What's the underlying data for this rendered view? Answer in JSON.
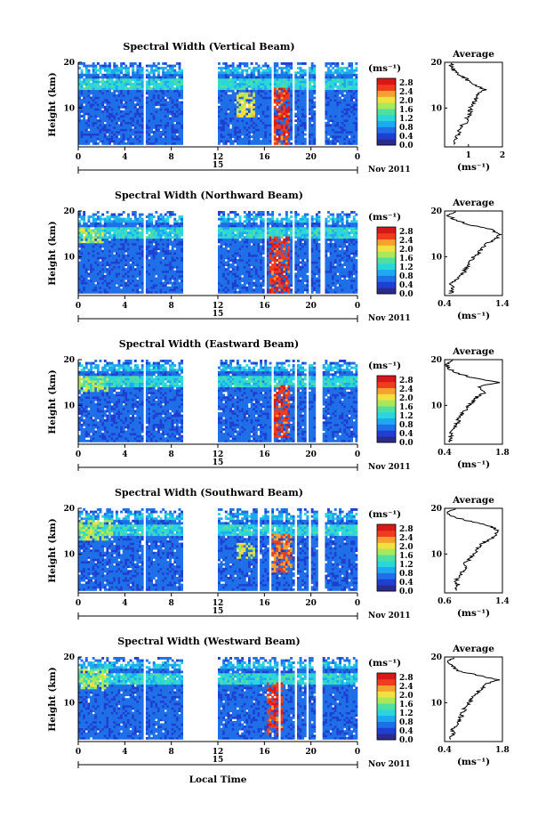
{
  "figure": {
    "xaxis_label": "Local Time",
    "date_label": "Nov 2011",
    "date_center_label": "15",
    "unit_label": "(ms⁻¹)",
    "avg_title": "Average",
    "colors": {
      "colormap": [
        "#2b2b8c",
        "#1f3fd0",
        "#1e6fe8",
        "#1ea8f0",
        "#2ad6dc",
        "#4fe0a0",
        "#a8e85a",
        "#f0e040",
        "#f5a030",
        "#ee3c1e",
        "#d81818"
      ]
    }
  },
  "chart_data": [
    {
      "type": "heatmap",
      "title": "Spectral Width (Vertical Beam)",
      "ylabel": "Height (km)",
      "xlabel": "Local Time",
      "x_ticks": [
        "0",
        "4",
        "8",
        "12",
        "16",
        "20",
        "0"
      ],
      "y_ticks": [
        "20",
        "10"
      ],
      "xlim": [
        0,
        24
      ],
      "ylim": [
        1.5,
        20
      ],
      "colorbar": {
        "ticks": [
          "2.8",
          "2.4",
          "2.0",
          "1.6",
          "1.2",
          "0.8",
          "0.4",
          "0.0"
        ],
        "range": [
          0,
          3.0
        ]
      },
      "data_gaps_hours": [
        [
          5.6,
          5.9
        ],
        [
          9.0,
          12.0
        ],
        [
          16.6,
          16.8
        ],
        [
          18.3,
          18.5
        ],
        [
          19.5,
          19.7
        ],
        [
          20.3,
          21.2
        ]
      ],
      "enhanced_regions": [
        {
          "t": [
            13.5,
            15.0
          ],
          "h": [
            8,
            13
          ],
          "value": 2.2
        },
        {
          "t": [
            16.5,
            18.0
          ],
          "h": [
            2,
            14
          ],
          "value": 2.9
        }
      ],
      "profile": {
        "title": "Average",
        "xlabel": "(ms⁻¹)",
        "x_ticks": [
          "1",
          "2"
        ],
        "xlim": [
          0.3,
          2.0
        ],
        "y_ticks": [
          "20",
          "10"
        ],
        "height": [
          2,
          3,
          4,
          5,
          6,
          7,
          8,
          9,
          10,
          11,
          12,
          13,
          14,
          15,
          16,
          17,
          18,
          19,
          20
        ],
        "value": [
          0.6,
          0.62,
          0.7,
          0.72,
          0.8,
          0.95,
          0.98,
          1.05,
          1.05,
          1.15,
          1.2,
          1.3,
          1.5,
          1.2,
          1.0,
          0.8,
          0.6,
          0.5,
          0.5
        ]
      }
    },
    {
      "type": "heatmap",
      "title": "Spectral Width (Northward Beam)",
      "ylabel": "Height (km)",
      "xlabel": "Local Time",
      "x_ticks": [
        "0",
        "4",
        "8",
        "12",
        "16",
        "20",
        "0"
      ],
      "y_ticks": [
        "20",
        "10"
      ],
      "xlim": [
        0,
        24
      ],
      "ylim": [
        1.5,
        20
      ],
      "colorbar": {
        "ticks": [
          "2.8",
          "2.4",
          "2.0",
          "1.6",
          "1.2",
          "0.8",
          "0.4",
          "0.0"
        ],
        "range": [
          0,
          3.0
        ]
      },
      "data_gaps_hours": [
        [
          5.6,
          5.9
        ],
        [
          9.0,
          12.0
        ],
        [
          16.0,
          16.2
        ],
        [
          18.3,
          18.5
        ],
        [
          19.8,
          20.0
        ],
        [
          20.8,
          21.1
        ]
      ],
      "enhanced_regions": [
        {
          "t": [
            0.0,
            2.0
          ],
          "h": [
            13,
            16
          ],
          "value": 2.0
        },
        {
          "t": [
            16.2,
            18.0
          ],
          "h": [
            2,
            14
          ],
          "value": 2.9
        }
      ],
      "profile": {
        "title": "Average",
        "xlabel": "(ms⁻¹)",
        "x_ticks": [
          "0.4",
          "1.4"
        ],
        "xlim": [
          0.4,
          1.4
        ],
        "y_ticks": [
          "20",
          "10"
        ],
        "height": [
          2,
          3,
          4,
          5,
          6,
          7,
          8,
          9,
          10,
          11,
          12,
          13,
          14,
          15,
          16,
          17,
          18,
          19,
          20
        ],
        "value": [
          0.5,
          0.55,
          0.5,
          0.6,
          0.7,
          0.75,
          0.8,
          0.85,
          0.9,
          1.0,
          1.05,
          1.15,
          1.3,
          1.35,
          1.2,
          0.8,
          0.6,
          0.45,
          0.6
        ]
      }
    },
    {
      "type": "heatmap",
      "title": "Spectral Width (Eastward Beam)",
      "ylabel": "Height (km)",
      "xlabel": "Local Time",
      "x_ticks": [
        "0",
        "4",
        "8",
        "12",
        "16",
        "20",
        "0"
      ],
      "y_ticks": [
        "20",
        "10"
      ],
      "xlim": [
        0,
        24
      ],
      "ylim": [
        1.5,
        20
      ],
      "colorbar": {
        "ticks": [
          "2.8",
          "2.4",
          "2.0",
          "1.6",
          "1.2",
          "0.8",
          "0.4",
          "0.0"
        ],
        "range": [
          0,
          3.0
        ]
      },
      "data_gaps_hours": [
        [
          5.6,
          5.9
        ],
        [
          9.0,
          12.0
        ],
        [
          16.6,
          16.8
        ],
        [
          18.5,
          18.7
        ],
        [
          19.6,
          19.8
        ],
        [
          20.3,
          21.0
        ]
      ],
      "enhanced_regions": [
        {
          "t": [
            0.0,
            2.5
          ],
          "h": [
            13,
            16
          ],
          "value": 2.0
        },
        {
          "t": [
            16.5,
            18.0
          ],
          "h": [
            3,
            14
          ],
          "value": 2.9
        }
      ],
      "profile": {
        "title": "Average",
        "xlabel": "(ms⁻¹)",
        "x_ticks": [
          "0.4",
          "1.8"
        ],
        "xlim": [
          0.4,
          1.8
        ],
        "y_ticks": [
          "20",
          "10"
        ],
        "height": [
          2,
          3,
          4,
          5,
          6,
          7,
          8,
          9,
          10,
          11,
          12,
          13,
          14,
          15,
          16,
          17,
          18,
          19,
          20
        ],
        "value": [
          0.5,
          0.55,
          0.55,
          0.6,
          0.7,
          0.75,
          0.8,
          0.9,
          1.0,
          1.1,
          1.2,
          1.4,
          1.2,
          1.7,
          1.1,
          0.7,
          0.5,
          0.45,
          0.6
        ]
      }
    },
    {
      "type": "heatmap",
      "title": "Spectral Width (Southward Beam)",
      "ylabel": "Height (km)",
      "xlabel": "Local Time",
      "x_ticks": [
        "0",
        "4",
        "8",
        "12",
        "16",
        "20",
        "0"
      ],
      "y_ticks": [
        "20",
        "10"
      ],
      "xlim": [
        0,
        24
      ],
      "ylim": [
        1.5,
        20
      ],
      "colorbar": {
        "ticks": [
          "2.8",
          "2.4",
          "2.0",
          "1.6",
          "1.2",
          "0.8",
          "0.4",
          "0.0"
        ],
        "range": [
          0,
          3.0
        ]
      },
      "data_gaps_hours": [
        [
          5.6,
          5.9
        ],
        [
          9.0,
          12.0
        ],
        [
          15.3,
          15.5
        ],
        [
          16.4,
          16.6
        ],
        [
          18.6,
          18.8
        ],
        [
          19.8,
          20.0
        ],
        [
          20.6,
          21.2
        ]
      ],
      "enhanced_regions": [
        {
          "t": [
            0.0,
            3.0
          ],
          "h": [
            13,
            17
          ],
          "value": 2.0
        },
        {
          "t": [
            13.5,
            15.0
          ],
          "h": [
            9,
            12
          ],
          "value": 2.2
        },
        {
          "t": [
            16.5,
            18.2
          ],
          "h": [
            6,
            14
          ],
          "value": 2.7
        }
      ],
      "profile": {
        "title": "Average",
        "xlabel": "(ms⁻¹)",
        "x_ticks": [
          "0.6",
          "1.4"
        ],
        "xlim": [
          0.6,
          1.4
        ],
        "y_ticks": [
          "20",
          "10"
        ],
        "height": [
          2,
          3,
          4,
          5,
          6,
          7,
          8,
          9,
          10,
          11,
          12,
          13,
          14,
          15,
          16,
          17,
          18,
          19,
          20
        ],
        "value": [
          0.75,
          0.8,
          0.75,
          0.8,
          0.85,
          0.9,
          0.88,
          0.95,
          1.0,
          1.05,
          1.1,
          1.2,
          1.3,
          1.35,
          1.25,
          1.0,
          0.75,
          0.65,
          0.75
        ]
      }
    },
    {
      "type": "heatmap",
      "title": "Spectral Width (Westward Beam)",
      "ylabel": "Height (km)",
      "xlabel": "Local Time",
      "x_ticks": [
        "0",
        "4",
        "8",
        "12",
        "16",
        "20",
        "0"
      ],
      "y_ticks": [
        "20",
        "10"
      ],
      "xlim": [
        0,
        24
      ],
      "ylim": [
        1.5,
        20
      ],
      "colorbar": {
        "ticks": [
          "2.8",
          "2.4",
          "2.0",
          "1.6",
          "1.2",
          "0.8",
          "0.4",
          "0.0"
        ],
        "range": [
          0,
          3.0
        ]
      },
      "data_gaps_hours": [
        [
          5.6,
          5.9
        ],
        [
          9.0,
          12.0
        ],
        [
          17.2,
          17.4
        ],
        [
          18.6,
          18.8
        ],
        [
          19.6,
          19.8
        ],
        [
          20.4,
          21.0
        ]
      ],
      "enhanced_regions": [
        {
          "t": [
            0.0,
            2.5
          ],
          "h": [
            13,
            17
          ],
          "value": 2.0
        },
        {
          "t": [
            16.0,
            17.5
          ],
          "h": [
            3,
            14
          ],
          "value": 2.9
        }
      ],
      "profile": {
        "title": "Average",
        "xlabel": "(ms⁻¹)",
        "x_ticks": [
          "0.4",
          "1.8"
        ],
        "xlim": [
          0.4,
          1.8
        ],
        "y_ticks": [
          "20",
          "10"
        ],
        "height": [
          2,
          3,
          4,
          5,
          6,
          7,
          8,
          9,
          10,
          11,
          12,
          13,
          14,
          15,
          16,
          17,
          18,
          19,
          20
        ],
        "value": [
          0.55,
          0.6,
          0.6,
          0.65,
          0.75,
          0.8,
          0.85,
          0.9,
          1.0,
          1.05,
          1.15,
          1.3,
          1.35,
          1.7,
          1.2,
          0.7,
          0.6,
          0.5,
          0.65
        ]
      }
    }
  ]
}
